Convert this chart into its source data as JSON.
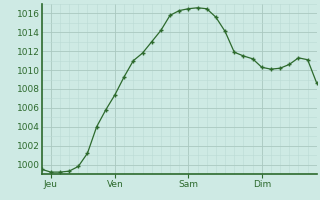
{
  "x_values": [
    0,
    1,
    2,
    3,
    4,
    5,
    6,
    7,
    8,
    9,
    10,
    11,
    12,
    13,
    14,
    15,
    16,
    17,
    18,
    19,
    20,
    21,
    22,
    23,
    24,
    25,
    26,
    27,
    28,
    29,
    30
  ],
  "y_values": [
    999.5,
    999.2,
    999.2,
    999.3,
    999.8,
    1001.2,
    1004.0,
    1005.8,
    1007.4,
    1009.3,
    1011.0,
    1011.8,
    1013.0,
    1014.2,
    1015.8,
    1016.3,
    1016.5,
    1016.6,
    1016.5,
    1015.6,
    1014.1,
    1011.9,
    1011.5,
    1011.2,
    1010.3,
    1010.1,
    1010.2,
    1010.6,
    1011.3,
    1011.1,
    1008.6
  ],
  "x_tick_positions": [
    1,
    8,
    16,
    24
  ],
  "x_tick_labels": [
    "Jeu",
    "Ven",
    "Sam",
    "Dim"
  ],
  "ylim": [
    999,
    1017
  ],
  "yticks": [
    1000,
    1002,
    1004,
    1006,
    1008,
    1010,
    1012,
    1014,
    1016
  ],
  "xlim": [
    0,
    30
  ],
  "line_color": "#2d6a2d",
  "marker_color": "#2d6a2d",
  "bg_color": "#ceeae4",
  "grid_color_major": "#aac8c0",
  "grid_color_minor": "#bbdad4",
  "axis_color": "#2d6a2d",
  "label_color": "#2d6a2d",
  "tick_label_fontsize": 6.5,
  "linewidth": 0.9,
  "markersize": 3.5
}
